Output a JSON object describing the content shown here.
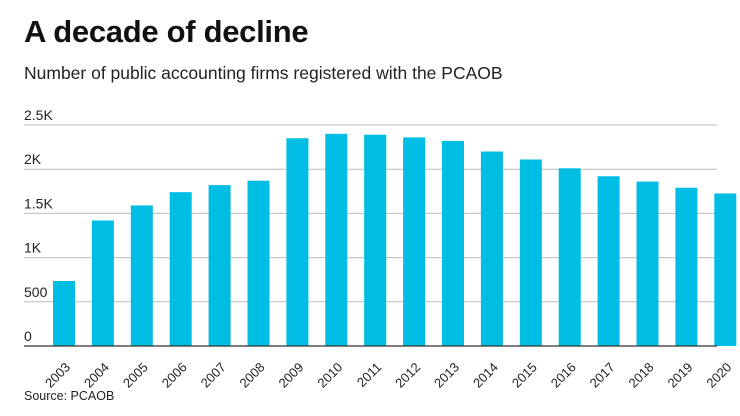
{
  "header": {
    "title": "A decade of decline",
    "subtitle": "Number of public accounting firms registered with the PCAOB"
  },
  "footer": {
    "source": "Source: PCAOB"
  },
  "colors": {
    "bar": "#00bde3",
    "grid": "#bdbdbd",
    "axis": "#333333"
  },
  "chart_data": {
    "type": "bar",
    "categories": [
      "2003",
      "2004",
      "2005",
      "2006",
      "2007",
      "2008",
      "2009",
      "2010",
      "2011",
      "2012",
      "2013",
      "2014",
      "2015",
      "2016",
      "2017",
      "2018",
      "2019",
      "2020"
    ],
    "values": [
      735,
      1420,
      1590,
      1740,
      1820,
      1870,
      2350,
      2400,
      2390,
      2360,
      2320,
      2200,
      2110,
      2010,
      1920,
      1860,
      1790,
      1725
    ],
    "ylim": [
      0,
      2500
    ],
    "yticks": [
      {
        "value": 0,
        "label": "0"
      },
      {
        "value": 500,
        "label": "500"
      },
      {
        "value": 1000,
        "label": "1K"
      },
      {
        "value": 1500,
        "label": "1.5K"
      },
      {
        "value": 2000,
        "label": "2K"
      },
      {
        "value": 2500,
        "label": "2.5K"
      }
    ],
    "grid": true,
    "xlabel": "",
    "ylabel": ""
  }
}
